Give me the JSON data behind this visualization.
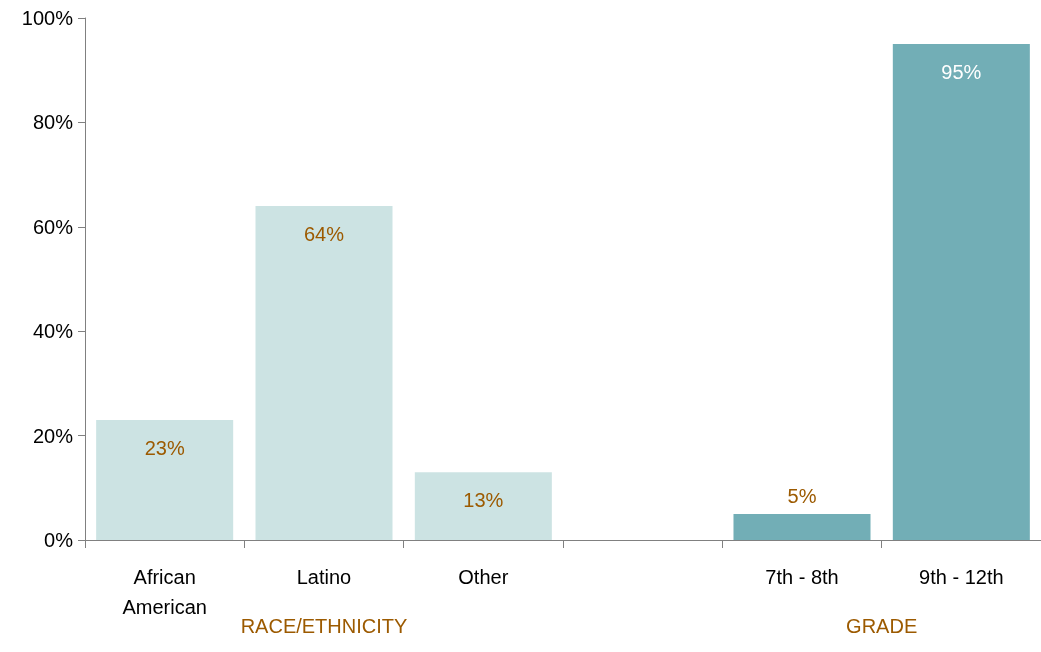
{
  "chart_data": {
    "type": "bar",
    "categories": [
      "African\nAmerican",
      "Latino",
      "Other",
      null,
      "7th - 8th",
      "9th - 12th"
    ],
    "values": [
      23,
      64,
      13,
      null,
      5,
      95
    ],
    "colors": [
      "#cce3e3",
      "#cce3e3",
      "#cce3e3",
      "#cce3e3",
      "#72aeb6",
      "#72aeb6"
    ],
    "value_labels": [
      "23%",
      "64%",
      "13%",
      null,
      "5%",
      "95%"
    ],
    "ylim": [
      0,
      100
    ],
    "yticks": [
      {
        "value": 0,
        "label": "0%"
      },
      {
        "value": 20,
        "label": "20%"
      },
      {
        "value": 40,
        "label": "40%"
      },
      {
        "value": 60,
        "label": "60%"
      },
      {
        "value": 80,
        "label": "80%"
      },
      {
        "value": 100,
        "label": "100%"
      }
    ],
    "annotations": [
      "RACE/ETHNICITY",
      "GRADE"
    ]
  }
}
